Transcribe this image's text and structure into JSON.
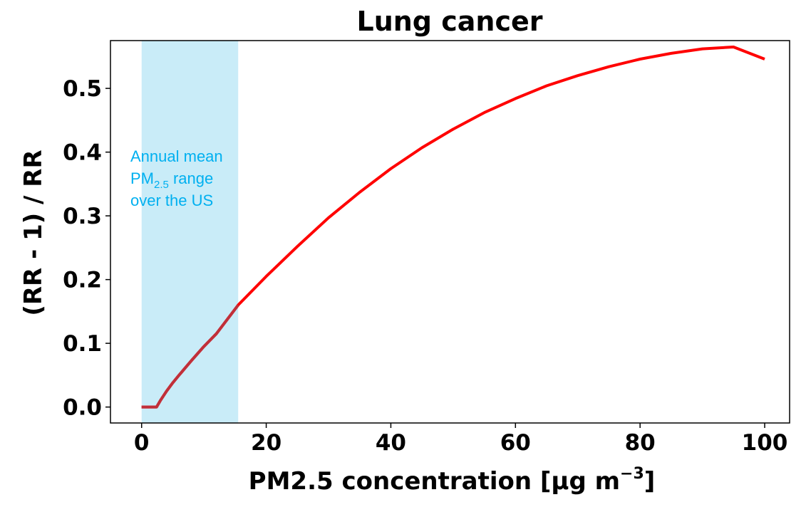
{
  "chart_data": {
    "type": "line",
    "title": "Lung cancer",
    "xlabel_main": "PM2.5 concentration [μg m",
    "xlabel_sup": "−3",
    "xlabel_end": "]",
    "ylabel": "(RR - 1) / RR",
    "xlim": [
      -5,
      104
    ],
    "ylim": [
      -0.025,
      0.575
    ],
    "xticks": [
      0,
      20,
      40,
      60,
      80,
      100
    ],
    "xtick_labels": [
      "0",
      "20",
      "40",
      "60",
      "80",
      "100"
    ],
    "yticks": [
      0.0,
      0.1,
      0.2,
      0.3,
      0.4,
      0.5
    ],
    "ytick_labels": [
      "0.0",
      "0.1",
      "0.2",
      "0.3",
      "0.4",
      "0.5"
    ],
    "grid": false,
    "shaded_region": {
      "x_range": [
        0,
        15.5
      ],
      "color": "#c9ecf8",
      "annotation": {
        "line1": "Annual mean",
        "line2_prefix": "PM",
        "line2_sub": "2.5",
        "line2_suffix": " range",
        "line3": "over the US"
      }
    },
    "series": [
      {
        "color": "#ff0000",
        "overlay_color": "#c0303a",
        "x": [
          0,
          2.4,
          3,
          4,
          5,
          6,
          8,
          10,
          12,
          15.5,
          20,
          25,
          30,
          35,
          40,
          45,
          50,
          55,
          60,
          65,
          70,
          75,
          80,
          85,
          90,
          95,
          100
        ],
        "y": [
          0.0,
          0.0,
          0.01,
          0.025,
          0.038,
          0.05,
          0.073,
          0.095,
          0.115,
          0.16,
          0.205,
          0.252,
          0.297,
          0.337,
          0.374,
          0.407,
          0.436,
          0.462,
          0.484,
          0.504,
          0.52,
          0.534,
          0.546,
          0.555,
          0.562,
          0.565,
          0.546
        ]
      }
    ]
  }
}
